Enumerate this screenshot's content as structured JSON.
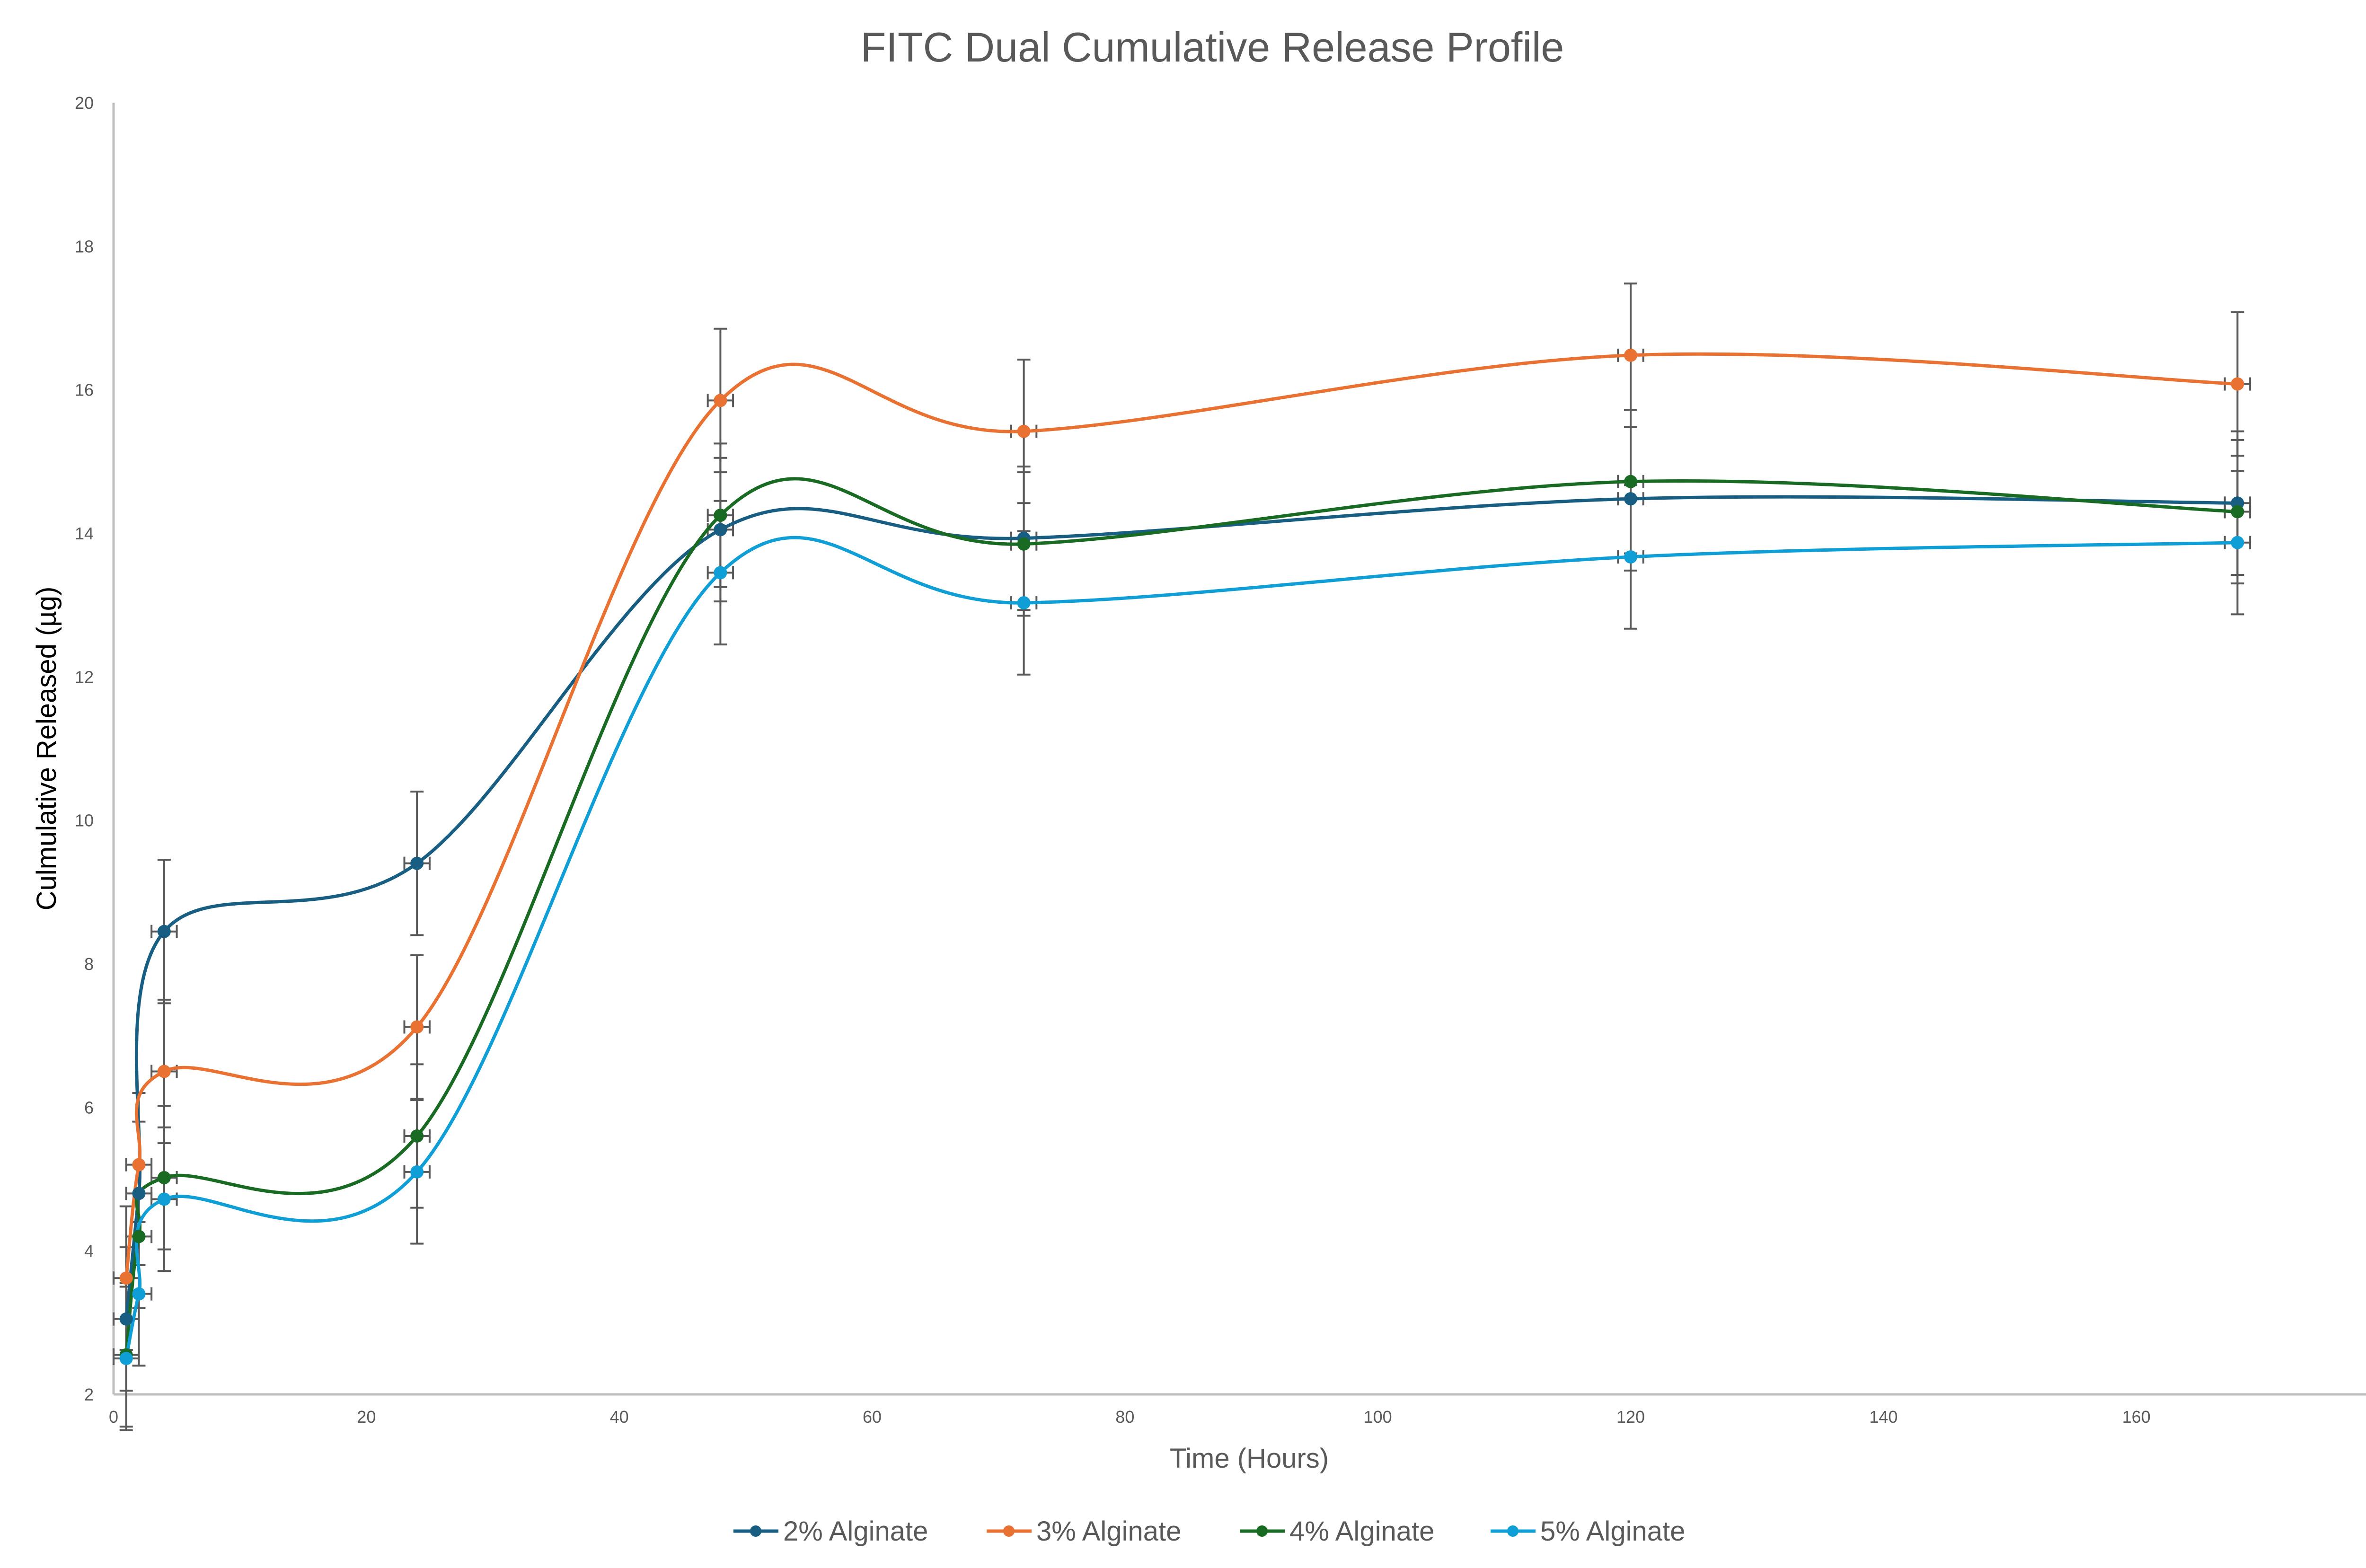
{
  "chart_data": {
    "type": "line",
    "title": "FITC Dual Cumulative Release Profile",
    "xlabel": "Time (Hours)",
    "ylabel": "Culmulative Released (µg)",
    "xlim": [
      0,
      180
    ],
    "ylim": [
      2,
      20
    ],
    "xticks": [
      "0",
      "20",
      "40",
      "60",
      "80",
      "100",
      "120",
      "140",
      "160",
      "180"
    ],
    "yticks": [
      "2",
      "4",
      "6",
      "8",
      "10",
      "12",
      "14",
      "16",
      "18",
      "20"
    ],
    "grid": false,
    "smoothed": true,
    "legend_position": "bottom",
    "x": [
      1,
      2,
      4,
      24,
      48,
      72,
      120,
      168
    ],
    "x_error": 1,
    "series": [
      {
        "name": "2% Alginate",
        "color": "#175E82",
        "values": [
          3.05,
          4.8,
          8.45,
          9.4,
          14.05,
          13.93,
          14.48,
          14.42
        ],
        "y_error": 1
      },
      {
        "name": "3% Alginate",
        "color": "#E97132",
        "values": [
          3.62,
          5.2,
          6.5,
          7.12,
          15.85,
          15.42,
          16.48,
          16.08
        ],
        "y_error": 1
      },
      {
        "name": "4% Alginate",
        "color": "#196B24",
        "values": [
          2.55,
          4.2,
          5.02,
          5.6,
          14.25,
          13.85,
          14.72,
          14.3
        ],
        "y_error": 1
      },
      {
        "name": "5% Alginate",
        "color": "#0F9ED5",
        "values": [
          2.5,
          3.4,
          4.72,
          5.1,
          13.45,
          13.03,
          13.67,
          13.87
        ],
        "y_error": 1
      }
    ]
  }
}
